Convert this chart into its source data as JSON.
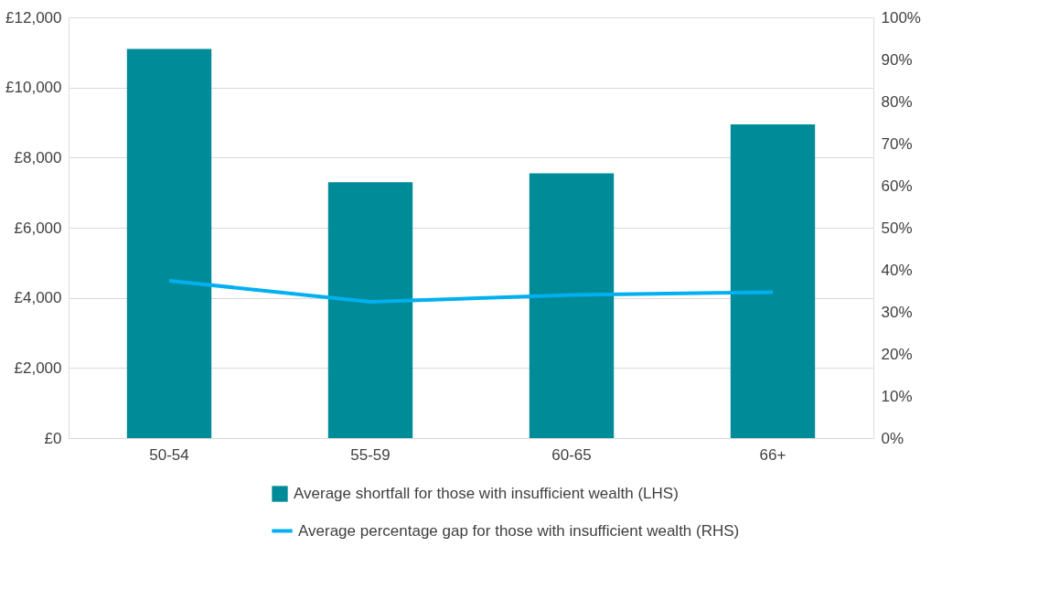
{
  "chart_data": {
    "type": "bar",
    "categories": [
      "50-54",
      "55-59",
      "60-65",
      "66+"
    ],
    "series": [
      {
        "name": "Average shortfall for those with insufficient wealth (LHS)",
        "color": "#008b98",
        "values": [
          11100,
          7300,
          7550,
          8950
        ]
      },
      {
        "name": "Average percentage gap for those with insufficient wealth (RHS)",
        "type": "line",
        "axis": "y2",
        "color": "#00b0f0",
        "values": [
          37.4,
          32.4,
          34.0,
          34.7
        ]
      }
    ],
    "ylim": [
      0,
      12000
    ],
    "yticks": [
      {
        "value": 0,
        "label": "£0"
      },
      {
        "value": 2000,
        "label": "£2,000"
      },
      {
        "value": 4000,
        "label": "£4,000"
      },
      {
        "value": 6000,
        "label": "£6,000"
      },
      {
        "value": 8000,
        "label": "£8,000"
      },
      {
        "value": 10000,
        "label": "£10,000"
      },
      {
        "value": 12000,
        "label": "£12,000"
      }
    ],
    "y2lim": [
      0,
      100
    ],
    "y2ticks": [
      {
        "value": 0,
        "label": "0%"
      },
      {
        "value": 10,
        "label": "10%"
      },
      {
        "value": 20,
        "label": "20%"
      },
      {
        "value": 30,
        "label": "30%"
      },
      {
        "value": 40,
        "label": "40%"
      },
      {
        "value": 50,
        "label": "50%"
      },
      {
        "value": 60,
        "label": "60%"
      },
      {
        "value": 70,
        "label": "70%"
      },
      {
        "value": 80,
        "label": "80%"
      },
      {
        "value": 90,
        "label": "90%"
      },
      {
        "value": 100,
        "label": "100%"
      }
    ],
    "grid": "y",
    "legend": "bottom",
    "marker": "none",
    "line_style": "solid"
  }
}
